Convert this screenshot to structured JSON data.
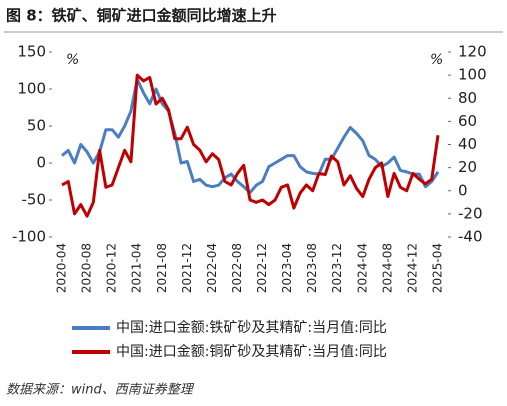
{
  "chart_data": {
    "type": "line",
    "title": "图 8：铁矿、铜矿进口金额同比增速上升",
    "source": "数据来源：wind、西南证券整理",
    "y_unit": "%",
    "y2_unit": "%",
    "categories": [
      "2020-04",
      null,
      null,
      null,
      "2020-08",
      null,
      null,
      null,
      "2020-12",
      null,
      null,
      null,
      "2021-04",
      null,
      null,
      null,
      "2021-08",
      null,
      null,
      null,
      "2021-12",
      null,
      null,
      null,
      "2022-04",
      null,
      null,
      null,
      "2022-08",
      null,
      null,
      null,
      "2022-12",
      null,
      null,
      null,
      "2023-04",
      null,
      null,
      null,
      "2023-08",
      null,
      null,
      null,
      "2023-12",
      null,
      null,
      null,
      "2024-04",
      null,
      null,
      null,
      "2024-08",
      null,
      null,
      null,
      "2024-12",
      null,
      null,
      null,
      "2025-04"
    ],
    "series": [
      {
        "name": "中国:进口金额:铁矿砂及其精矿:当月值:同比",
        "color": "#4a7ec2",
        "values": [
          10,
          17,
          0,
          25,
          15,
          0,
          15,
          45,
          45,
          35,
          50,
          70,
          113,
          95,
          80,
          100,
          80,
          70,
          40,
          0,
          2,
          -25,
          -22,
          -30,
          -32,
          -30,
          -20,
          -15,
          -25,
          -32,
          -40,
          -30,
          -25,
          -5,
          0,
          5,
          10,
          10,
          -5,
          -12,
          -14,
          -15,
          5,
          5,
          20,
          35,
          48,
          40,
          30,
          10,
          5,
          -5,
          0,
          8,
          -10,
          -12,
          -15,
          -15,
          -32,
          -25,
          -12
        ]
      },
      {
        "name": "中国:进口金额:铜矿砂及其精矿:当月值:同比",
        "color": "#c00000",
        "axis": "y2",
        "values": [
          5,
          8,
          -20,
          -12,
          -22,
          -10,
          35,
          3,
          5,
          20,
          35,
          25,
          100,
          95,
          98,
          75,
          80,
          70,
          45,
          45,
          55,
          40,
          35,
          25,
          32,
          27,
          8,
          5,
          15,
          22,
          -8,
          -10,
          -8,
          -12,
          -8,
          3,
          5,
          -15,
          -2,
          5,
          0,
          15,
          14,
          30,
          25,
          5,
          13,
          2,
          -5,
          10,
          20,
          24,
          -5,
          15,
          3,
          0,
          15,
          10,
          6,
          10,
          48
        ]
      }
    ],
    "ylim": [
      -100,
      150
    ],
    "yticks": [
      -100,
      -50,
      0,
      50,
      100,
      150
    ],
    "y2lim": [
      -40,
      120
    ],
    "y2ticks": [
      -40,
      -20,
      0,
      20,
      40,
      60,
      80,
      100,
      120
    ]
  }
}
